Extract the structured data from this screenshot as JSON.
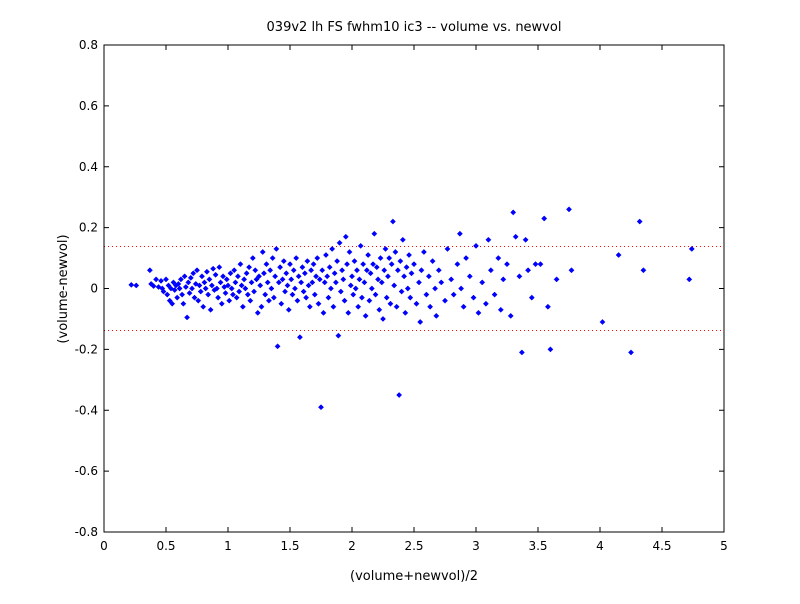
{
  "chart_data": {
    "type": "scatter",
    "title": "039v2 lh FS fwhm10 ic3 -- volume vs. newvol",
    "xlabel": "(volume+newvol)/2",
    "ylabel": "(volume-newvol)",
    "xlim": [
      0,
      5
    ],
    "ylim": [
      -0.8,
      0.8
    ],
    "xticks": [
      "0",
      "0.5",
      "1",
      "1.5",
      "2",
      "2.5",
      "3",
      "3.5",
      "4",
      "4.5",
      "5"
    ],
    "yticks": [
      "-0.8",
      "-0.6",
      "-0.4",
      "-0.2",
      "0",
      "0.2",
      "0.4",
      "0.6",
      "0.8"
    ],
    "grid": false,
    "legend": "none",
    "marker_color": "#0000ff",
    "reference_line_color": "#ff0000",
    "reference_lines_y": [
      0.138,
      -0.138
    ],
    "series": [
      {
        "marker": "diamond",
        "points": [
          [
            0.22,
            0.012
          ],
          [
            0.26,
            0.01
          ],
          [
            0.37,
            0.06
          ],
          [
            0.38,
            0.015
          ],
          [
            0.4,
            0.008
          ],
          [
            0.42,
            0.03
          ],
          [
            0.44,
            0.005
          ],
          [
            0.46,
            0.025
          ],
          [
            0.47,
            0.0
          ],
          [
            0.48,
            -0.01
          ],
          [
            0.5,
            0.03
          ],
          [
            0.51,
            -0.02
          ],
          [
            0.52,
            0.01
          ],
          [
            0.53,
            -0.04
          ],
          [
            0.54,
            0.0
          ],
          [
            0.55,
            -0.05
          ],
          [
            0.56,
            0.02
          ],
          [
            0.57,
            -0.005
          ],
          [
            0.58,
            0.01
          ],
          [
            0.59,
            -0.03
          ],
          [
            0.6,
            0.015
          ],
          [
            0.61,
            0.0
          ],
          [
            0.62,
            0.03
          ],
          [
            0.63,
            -0.02
          ],
          [
            0.64,
            -0.05
          ],
          [
            0.65,
            0.04
          ],
          [
            0.66,
            0.005
          ],
          [
            0.67,
            -0.095
          ],
          [
            0.68,
            0.02
          ],
          [
            0.69,
            -0.015
          ],
          [
            0.7,
            0.035
          ],
          [
            0.71,
            0.0
          ],
          [
            0.72,
            0.05
          ],
          [
            0.73,
            -0.03
          ],
          [
            0.74,
            0.015
          ],
          [
            0.75,
            0.06
          ],
          [
            0.76,
            -0.04
          ],
          [
            0.77,
            0.01
          ],
          [
            0.78,
            -0.01
          ],
          [
            0.79,
            0.04
          ],
          [
            0.8,
            -0.06
          ],
          [
            0.81,
            0.02
          ],
          [
            0.82,
            0.0
          ],
          [
            0.83,
            0.055
          ],
          [
            0.84,
            -0.02
          ],
          [
            0.85,
            0.03
          ],
          [
            0.86,
            -0.07
          ],
          [
            0.87,
            0.01
          ],
          [
            0.88,
            0.065
          ],
          [
            0.89,
            -0.005
          ],
          [
            0.9,
            0.045
          ],
          [
            0.91,
            0.0
          ],
          [
            0.92,
            -0.03
          ],
          [
            0.93,
            0.07
          ],
          [
            0.94,
            0.02
          ],
          [
            0.95,
            -0.05
          ],
          [
            0.96,
            0.04
          ],
          [
            0.97,
            0.005
          ],
          [
            0.98,
            -0.015
          ],
          [
            0.99,
            0.03
          ],
          [
            1.0,
            0.01
          ],
          [
            1.01,
            -0.04
          ],
          [
            1.02,
            0.05
          ],
          [
            1.03,
            0.0
          ],
          [
            1.04,
            -0.02
          ],
          [
            1.05,
            0.06
          ],
          [
            1.06,
            0.02
          ],
          [
            1.07,
            -0.03
          ],
          [
            1.08,
            0.04
          ],
          [
            1.09,
            -0.01
          ],
          [
            1.1,
            0.08
          ],
          [
            1.11,
            0.01
          ],
          [
            1.12,
            -0.06
          ],
          [
            1.13,
            0.03
          ],
          [
            1.14,
            0.0
          ],
          [
            1.15,
            0.05
          ],
          [
            1.16,
            -0.02
          ],
          [
            1.17,
            0.07
          ],
          [
            1.18,
            -0.04
          ],
          [
            1.19,
            0.02
          ],
          [
            1.2,
            0.1
          ],
          [
            1.21,
            -0.01
          ],
          [
            1.22,
            0.06
          ],
          [
            1.23,
            0.03
          ],
          [
            1.24,
            -0.08
          ],
          [
            1.25,
            0.04
          ],
          [
            1.26,
            0.01
          ],
          [
            1.27,
            -0.06
          ],
          [
            1.28,
            0.12
          ],
          [
            1.29,
            0.05
          ],
          [
            1.3,
            -0.02
          ],
          [
            1.31,
            0.08
          ],
          [
            1.32,
            0.02
          ],
          [
            1.33,
            -0.04
          ],
          [
            1.34,
            0.06
          ],
          [
            1.35,
            0.0
          ],
          [
            1.36,
            0.1
          ],
          [
            1.37,
            -0.03
          ],
          [
            1.38,
            0.04
          ],
          [
            1.39,
            0.13
          ],
          [
            1.4,
            -0.19
          ],
          [
            1.41,
            0.02
          ],
          [
            1.42,
            0.07
          ],
          [
            1.43,
            -0.05
          ],
          [
            1.44,
            0.03
          ],
          [
            1.45,
            0.09
          ],
          [
            1.46,
            -0.01
          ],
          [
            1.47,
            0.05
          ],
          [
            1.48,
            0.01
          ],
          [
            1.49,
            -0.07
          ],
          [
            1.5,
            0.08
          ],
          [
            1.51,
            0.03
          ],
          [
            1.52,
            -0.02
          ],
          [
            1.53,
            0.06
          ],
          [
            1.54,
            0.0
          ],
          [
            1.55,
            0.1
          ],
          [
            1.56,
            -0.04
          ],
          [
            1.57,
            0.04
          ],
          [
            1.58,
            -0.16
          ],
          [
            1.59,
            0.02
          ],
          [
            1.6,
            0.07
          ],
          [
            1.61,
            -0.01
          ],
          [
            1.62,
            0.05
          ],
          [
            1.63,
            -0.03
          ],
          [
            1.64,
            0.09
          ],
          [
            1.65,
            0.01
          ],
          [
            1.66,
            -0.06
          ],
          [
            1.67,
            0.06
          ],
          [
            1.68,
            0.02
          ],
          [
            1.69,
            0.08
          ],
          [
            1.7,
            -0.02
          ],
          [
            1.71,
            0.04
          ],
          [
            1.72,
            0.1
          ],
          [
            1.73,
            -0.05
          ],
          [
            1.74,
            0.03
          ],
          [
            1.75,
            -0.39
          ],
          [
            1.76,
            0.06
          ],
          [
            1.77,
            -0.08
          ],
          [
            1.78,
            0.02
          ],
          [
            1.79,
            0.11
          ],
          [
            1.8,
            0.04
          ],
          [
            1.81,
            -0.03
          ],
          [
            1.82,
            0.07
          ],
          [
            1.83,
            0.0
          ],
          [
            1.84,
            0.13
          ],
          [
            1.85,
            -0.06
          ],
          [
            1.86,
            0.05
          ],
          [
            1.87,
            0.02
          ],
          [
            1.88,
            0.09
          ],
          [
            1.89,
            -0.155
          ],
          [
            1.9,
            0.15
          ],
          [
            1.91,
            -0.01
          ],
          [
            1.92,
            0.06
          ],
          [
            1.93,
            0.03
          ],
          [
            1.94,
            -0.04
          ],
          [
            1.95,
            0.17
          ],
          [
            1.96,
            0.08
          ],
          [
            1.97,
            -0.08
          ],
          [
            1.98,
            0.12
          ],
          [
            1.99,
            0.01
          ],
          [
            2.0,
            0.04
          ],
          [
            2.01,
            -0.02
          ],
          [
            2.02,
            0.09
          ],
          [
            2.03,
            0.0
          ],
          [
            2.04,
            0.06
          ],
          [
            2.05,
            -0.06
          ],
          [
            2.06,
            0.03
          ],
          [
            2.07,
            0.14
          ],
          [
            2.08,
            -0.03
          ],
          [
            2.09,
            0.08
          ],
          [
            2.1,
            0.02
          ],
          [
            2.11,
            -0.09
          ],
          [
            2.12,
            0.06
          ],
          [
            2.13,
            0.11
          ],
          [
            2.14,
            -0.04
          ],
          [
            2.15,
            0.05
          ],
          [
            2.16,
            0.0
          ],
          [
            2.17,
            0.08
          ],
          [
            2.18,
            0.18
          ],
          [
            2.19,
            -0.02
          ],
          [
            2.2,
            0.07
          ],
          [
            2.21,
            0.03
          ],
          [
            2.22,
            -0.07
          ],
          [
            2.23,
            0.1
          ],
          [
            2.24,
            0.02
          ],
          [
            2.25,
            -0.1
          ],
          [
            2.26,
            0.06
          ],
          [
            2.27,
            0.13
          ],
          [
            2.28,
            -0.03
          ],
          [
            2.29,
            0.04
          ],
          [
            2.3,
            0.1
          ],
          [
            2.31,
            -0.05
          ],
          [
            2.32,
            0.08
          ],
          [
            2.33,
            0.22
          ],
          [
            2.34,
            0.01
          ],
          [
            2.35,
            0.12
          ],
          [
            2.36,
            -0.06
          ],
          [
            2.37,
            0.06
          ],
          [
            2.38,
            -0.35
          ],
          [
            2.39,
            0.09
          ],
          [
            2.4,
            -0.01
          ],
          [
            2.41,
            0.16
          ],
          [
            2.42,
            0.04
          ],
          [
            2.43,
            -0.08
          ],
          [
            2.44,
            0.07
          ],
          [
            2.45,
            0.0
          ],
          [
            2.46,
            0.11
          ],
          [
            2.47,
            -0.03
          ],
          [
            2.48,
            0.05
          ],
          [
            2.5,
            0.08
          ],
          [
            2.52,
            -0.05
          ],
          [
            2.54,
            0.02
          ],
          [
            2.55,
            -0.11
          ],
          [
            2.56,
            0.06
          ],
          [
            2.58,
            0.12
          ],
          [
            2.6,
            -0.02
          ],
          [
            2.62,
            0.04
          ],
          [
            2.63,
            -0.06
          ],
          [
            2.65,
            0.09
          ],
          [
            2.67,
            0.0
          ],
          [
            2.68,
            -0.09
          ],
          [
            2.7,
            0.06
          ],
          [
            2.72,
            0.02
          ],
          [
            2.75,
            -0.04
          ],
          [
            2.77,
            0.13
          ],
          [
            2.8,
            0.03
          ],
          [
            2.82,
            -0.02
          ],
          [
            2.85,
            0.08
          ],
          [
            2.87,
            0.18
          ],
          [
            2.88,
            0.0
          ],
          [
            2.9,
            -0.06
          ],
          [
            2.92,
            0.1
          ],
          [
            2.95,
            0.04
          ],
          [
            2.98,
            -0.03
          ],
          [
            3.0,
            0.14
          ],
          [
            3.02,
            -0.08
          ],
          [
            3.05,
            0.02
          ],
          [
            3.08,
            -0.05
          ],
          [
            3.1,
            0.16
          ],
          [
            3.12,
            0.06
          ],
          [
            3.15,
            -0.02
          ],
          [
            3.18,
            0.1
          ],
          [
            3.2,
            -0.07
          ],
          [
            3.22,
            0.03
          ],
          [
            3.25,
            0.08
          ],
          [
            3.28,
            -0.09
          ],
          [
            3.3,
            0.25
          ],
          [
            3.32,
            0.17
          ],
          [
            3.35,
            0.04
          ],
          [
            3.37,
            -0.21
          ],
          [
            3.4,
            0.16
          ],
          [
            3.42,
            0.06
          ],
          [
            3.45,
            -0.03
          ],
          [
            3.48,
            0.08
          ],
          [
            3.52,
            0.08
          ],
          [
            3.55,
            0.23
          ],
          [
            3.58,
            -0.06
          ],
          [
            3.6,
            -0.2
          ],
          [
            3.65,
            0.03
          ],
          [
            3.75,
            0.26
          ],
          [
            3.77,
            0.06
          ],
          [
            4.02,
            -0.11
          ],
          [
            4.15,
            0.11
          ],
          [
            4.25,
            -0.21
          ],
          [
            4.32,
            0.22
          ],
          [
            4.35,
            0.06
          ],
          [
            4.72,
            0.03
          ],
          [
            4.74,
            0.13
          ]
        ]
      }
    ]
  }
}
